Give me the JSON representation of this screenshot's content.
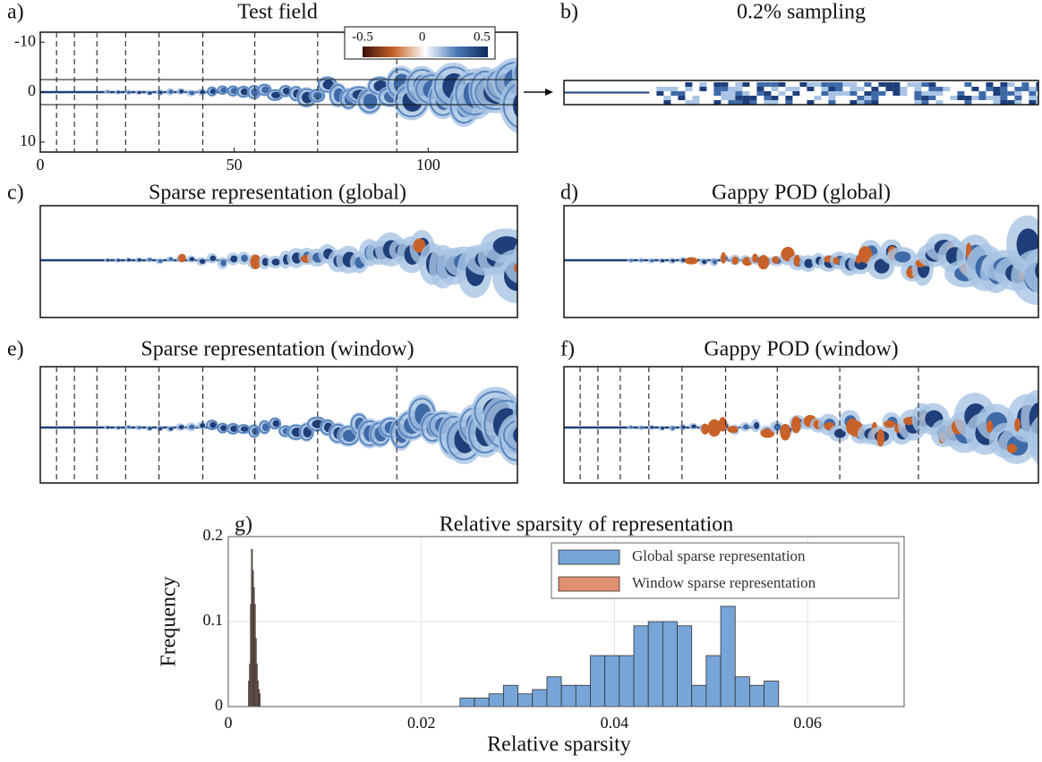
{
  "chart_data": [
    {
      "type": "field",
      "label": "a)",
      "title": "Test field",
      "xlim": [
        0,
        123
      ],
      "ylim": [
        -12,
        12
      ],
      "y_reversed": true,
      "xticks": [
        0,
        50,
        100
      ],
      "yticks": [
        -10,
        0,
        10
      ],
      "window_edges": [
        4.2,
        8.8,
        14.6,
        22,
        30.6,
        41.9,
        55.3,
        71.5,
        91.9
      ],
      "colorbar": {
        "lim": [
          -0.5,
          0.55
        ],
        "ticks": [
          -0.5,
          0,
          0.5
        ],
        "colors": [
          "#3a0f0a",
          "#c86428",
          "#ffffff",
          "#4a7ab8",
          "#0e2a5c"
        ]
      }
    },
    {
      "type": "field",
      "label": "b)",
      "title": "0.2% sampling"
    },
    {
      "type": "field",
      "label": "c)",
      "title": "Sparse representation (global)"
    },
    {
      "type": "field",
      "label": "d)",
      "title": "Gappy POD (global)"
    },
    {
      "type": "field",
      "label": "e)",
      "title": "Sparse representation (window)"
    },
    {
      "type": "field",
      "label": "f)",
      "title": "Gappy POD (window)"
    },
    {
      "type": "histogram",
      "label": "g)",
      "title": "Relative sparsity of representation",
      "xlabel": "Relative sparsity",
      "ylabel": "Frequency",
      "xlim": [
        0,
        0.07
      ],
      "ylim": [
        0,
        0.2
      ],
      "xticks": [
        0,
        0.02,
        0.04,
        0.06
      ],
      "yticks": [
        0,
        0.1,
        0.2
      ],
      "grid": true,
      "legend": "upper right",
      "series": [
        {
          "name": "Global sparse representation",
          "color": "#77a5d8",
          "bins": [
            0.024,
            0.0255,
            0.027,
            0.0285,
            0.03,
            0.0315,
            0.033,
            0.0345,
            0.036,
            0.0375,
            0.039,
            0.0405,
            0.042,
            0.0435,
            0.045,
            0.0465,
            0.048,
            0.0495,
            0.051,
            0.0525,
            0.054,
            0.0555,
            0.057
          ],
          "values": [
            0.01,
            0.01,
            0.015,
            0.025,
            0.015,
            0.02,
            0.035,
            0.025,
            0.025,
            0.06,
            0.06,
            0.06,
            0.095,
            0.1,
            0.1,
            0.095,
            0.025,
            0.06,
            0.118,
            0.035,
            0.025,
            0.03
          ]
        },
        {
          "name": "Window sparse representation",
          "color": "#e09070",
          "bins": [
            0.0021,
            0.0022,
            0.0023,
            0.0024,
            0.0025,
            0.0026,
            0.0027,
            0.0028,
            0.0029,
            0.003,
            0.0031,
            0.0032,
            0.0033
          ],
          "values": [
            0.03,
            0.05,
            0.12,
            0.185,
            0.16,
            0.14,
            0.12,
            0.08,
            0.05,
            0.03,
            0.02,
            0.015
          ]
        }
      ]
    }
  ]
}
